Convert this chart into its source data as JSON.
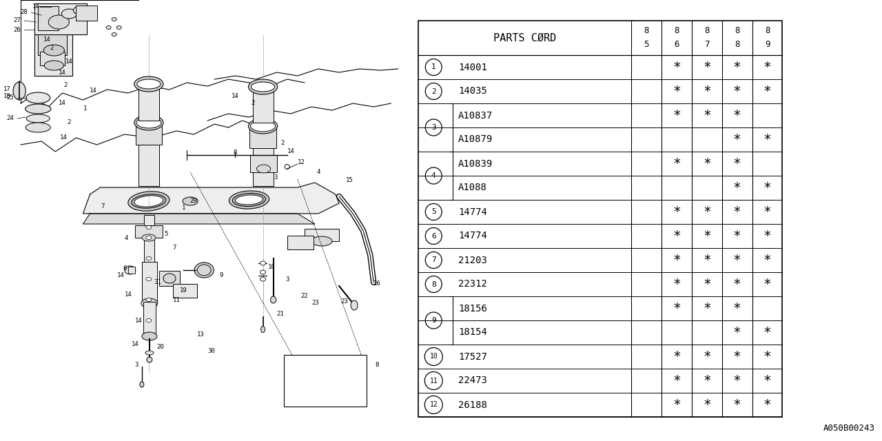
{
  "watermark": "A050B00243",
  "rows": [
    {
      "code": "14001",
      "cols": [
        false,
        true,
        true,
        true,
        true
      ]
    },
    {
      "code": "14035",
      "cols": [
        false,
        true,
        true,
        true,
        true
      ]
    },
    {
      "code": "A10837",
      "cols": [
        false,
        true,
        true,
        true,
        false
      ]
    },
    {
      "code": "A10879",
      "cols": [
        false,
        false,
        false,
        true,
        true
      ]
    },
    {
      "code": "A10839",
      "cols": [
        false,
        true,
        true,
        true,
        false
      ]
    },
    {
      "code": "A1088",
      "cols": [
        false,
        false,
        false,
        true,
        true
      ]
    },
    {
      "code": "14774",
      "cols": [
        false,
        true,
        true,
        true,
        true
      ]
    },
    {
      "code": "14774",
      "cols": [
        false,
        true,
        true,
        true,
        true
      ]
    },
    {
      "code": "21203",
      "cols": [
        false,
        true,
        true,
        true,
        true
      ]
    },
    {
      "code": "22312",
      "cols": [
        false,
        true,
        true,
        true,
        true
      ]
    },
    {
      "code": "18156",
      "cols": [
        false,
        true,
        true,
        true,
        false
      ]
    },
    {
      "code": "18154",
      "cols": [
        false,
        false,
        false,
        true,
        true
      ]
    },
    {
      "code": "17527",
      "cols": [
        false,
        true,
        true,
        true,
        true
      ]
    },
    {
      "code": "22473",
      "cols": [
        false,
        true,
        true,
        true,
        true
      ]
    },
    {
      "code": "26188",
      "cols": [
        false,
        true,
        true,
        true,
        true
      ]
    }
  ],
  "row_groups": [
    {
      "label": "1",
      "start": 0,
      "end": 0
    },
    {
      "label": "2",
      "start": 1,
      "end": 1
    },
    {
      "label": "3",
      "start": 2,
      "end": 3
    },
    {
      "label": "4",
      "start": 4,
      "end": 5
    },
    {
      "label": "5",
      "start": 6,
      "end": 6
    },
    {
      "label": "6",
      "start": 7,
      "end": 7
    },
    {
      "label": "7",
      "start": 8,
      "end": 8
    },
    {
      "label": "8",
      "start": 9,
      "end": 9
    },
    {
      "label": "9",
      "start": 10,
      "end": 11
    },
    {
      "label": "10",
      "start": 12,
      "end": 12
    },
    {
      "label": "11",
      "start": 13,
      "end": 13
    },
    {
      "label": "12",
      "start": 14,
      "end": 14
    }
  ],
  "year_tops": [
    "8",
    "8",
    "8",
    "8",
    "8"
  ],
  "year_bots": [
    "5",
    "6",
    "7",
    "8",
    "9"
  ],
  "bg_color": "#ffffff"
}
